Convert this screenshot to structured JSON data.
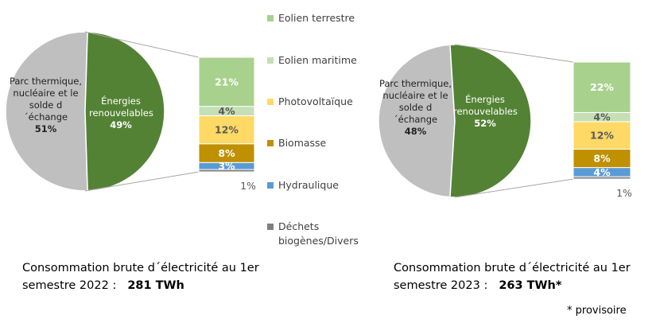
{
  "chart_data": [
    {
      "type": "pie-of-bar",
      "categories": [
        "Parc thermique, nucléaire et le solde d´échange",
        "Énergies renouvelables"
      ],
      "values": [
        51,
        49
      ],
      "value_labels": [
        "51%",
        "49%"
      ],
      "colors": [
        "#bfbfbf",
        "#548235"
      ],
      "breakdown": {
        "values": [
          21,
          4,
          12,
          8,
          3,
          1
        ],
        "value_labels": [
          "21%",
          "4%",
          "12%",
          "8%",
          "3%",
          "1%"
        ]
      },
      "caption": "Consommation brute d´électricité au 1er semestre 2022 :",
      "total": "281 TWh"
    },
    {
      "type": "pie-of-bar",
      "categories": [
        "Parc thermique, nucléaire et le solde d´échange",
        "Énergies renouvelables"
      ],
      "values": [
        48,
        52
      ],
      "value_labels": [
        "48%",
        "52%"
      ],
      "colors": [
        "#bfbfbf",
        "#548235"
      ],
      "breakdown": {
        "values": [
          22,
          4,
          12,
          8,
          4,
          1
        ],
        "value_labels": [
          "22%",
          "4%",
          "12%",
          "8%",
          "4%",
          "1%"
        ]
      },
      "caption": "Consommation brute d´électricité au 1er semestre 2023 :",
      "total": "263 TWh*"
    }
  ],
  "legend": {
    "names": [
      "Eolien terrestre",
      "Eolien maritime",
      "Photovoltaïque",
      "Biomasse",
      "Hydraulique",
      "Déchets biogènes/Divers"
    ],
    "colors": [
      "#a9d18e",
      "#c5e0b4",
      "#ffd966",
      "#bf9000",
      "#5b9bd5",
      "#7f7f7f"
    ]
  },
  "note": "* provisoire"
}
